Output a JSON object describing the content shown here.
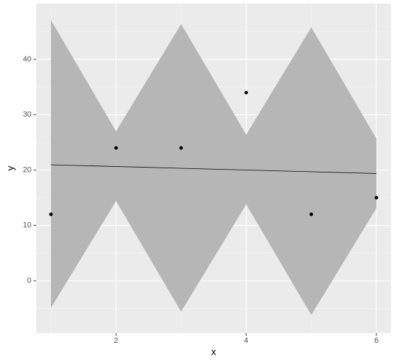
{
  "chart_data": {
    "type": "scatter",
    "x_label": "x",
    "y_label": "y",
    "xlim": [
      0.775,
      6.225
    ],
    "ylim": [
      -9.46,
      50.1
    ],
    "xticks": [
      2,
      4,
      6
    ],
    "yticks": [
      0,
      10,
      20,
      30,
      40
    ],
    "xminor": [
      1,
      3,
      5
    ],
    "yminor": [
      -5,
      5,
      15,
      25,
      35,
      45
    ],
    "grid": true,
    "ribbon": {
      "color": "#b3b3b3",
      "x": [
        1,
        2,
        3,
        4,
        5,
        6
      ],
      "upper": [
        47.1,
        27.0,
        46.4,
        26.4,
        45.8,
        25.7
      ],
      "lower": [
        -4.9,
        14.4,
        -5.6,
        13.8,
        -6.2,
        13.1
      ]
    },
    "fit_line": {
      "color": "#000000",
      "x": [
        1,
        6
      ],
      "y": [
        20.95,
        19.38
      ]
    },
    "points": {
      "color": "#000000",
      "x": [
        1,
        2,
        3,
        4,
        5,
        6
      ],
      "y": [
        12,
        24,
        24,
        34,
        12,
        15
      ]
    }
  }
}
